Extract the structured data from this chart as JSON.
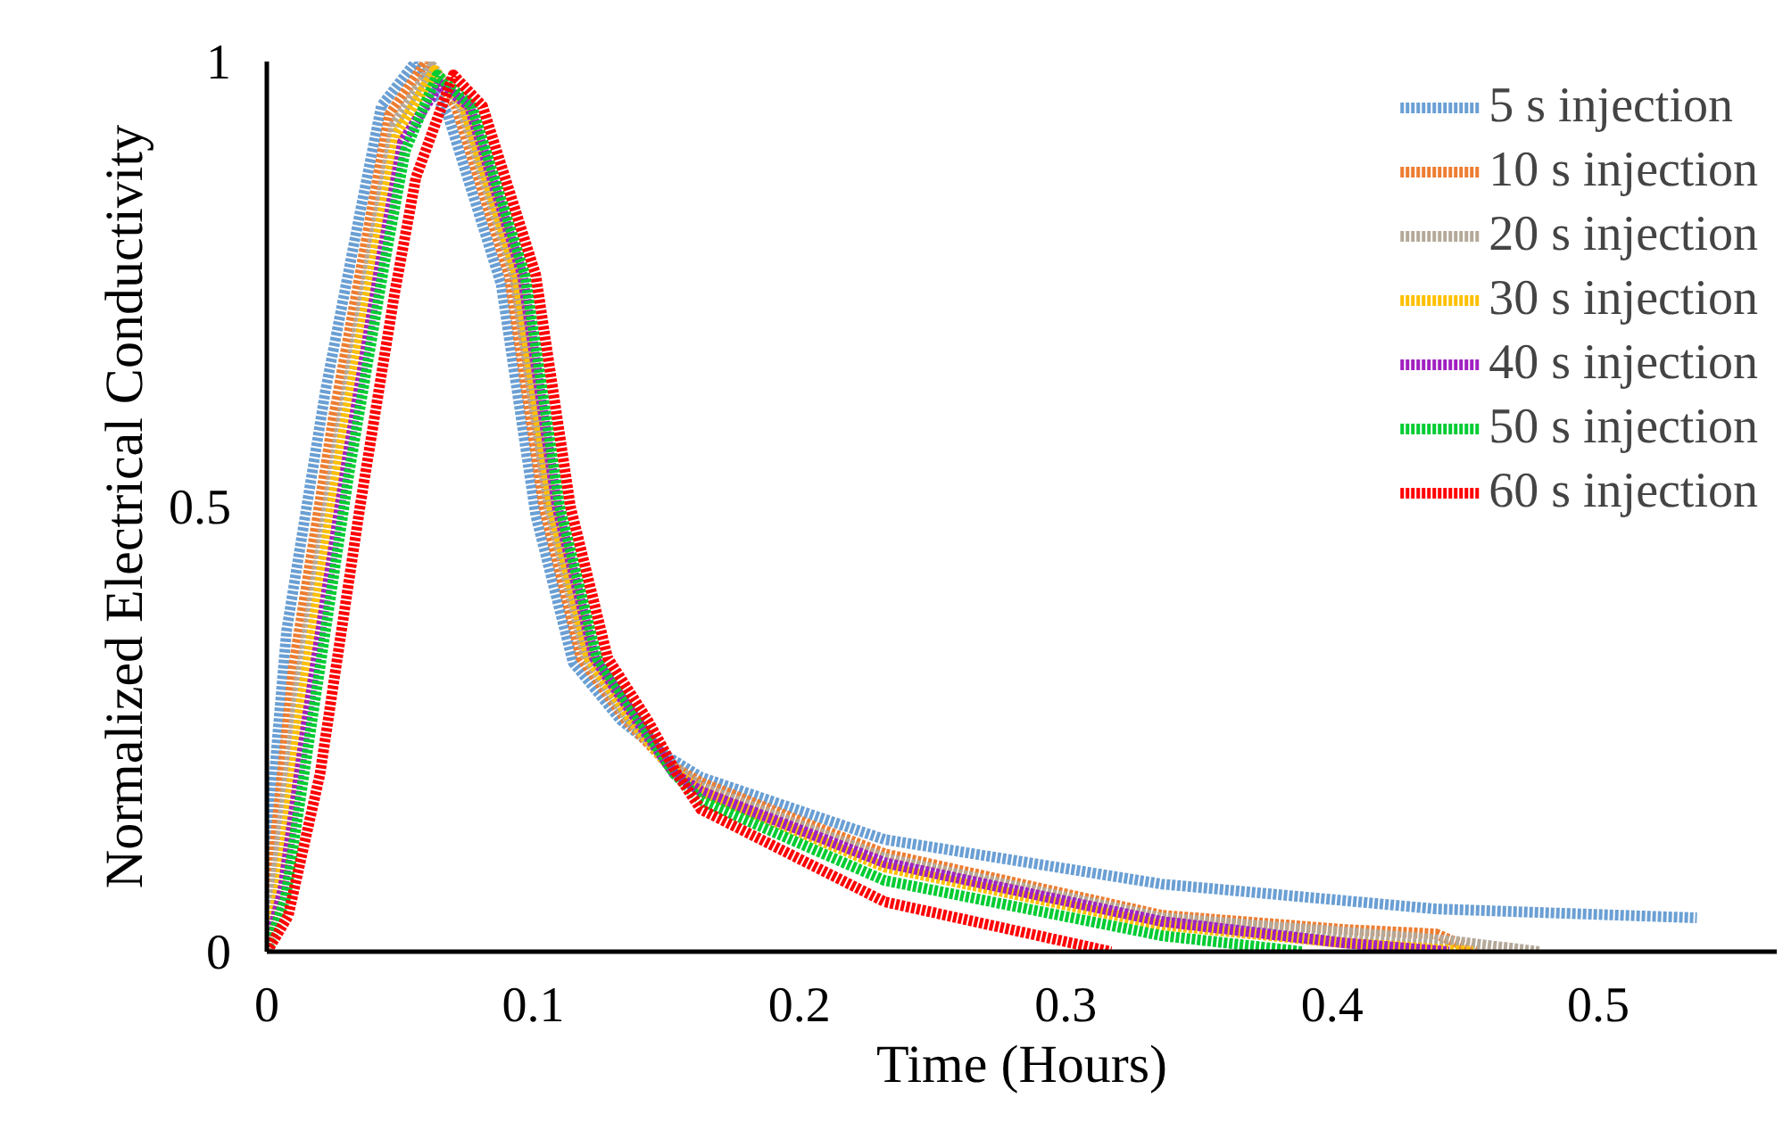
{
  "chart_data": {
    "type": "line",
    "xlabel": "Time (Hours)",
    "ylabel": "Normalized Electrical Conductivity",
    "xlim": [
      0,
      0.567
    ],
    "ylim": [
      0,
      1
    ],
    "xticks": [
      0,
      0.1,
      0.2,
      0.3,
      0.4,
      0.5
    ],
    "yticks": [
      0,
      0.5,
      1
    ],
    "grid": false,
    "legend": "top right",
    "line_style": "dotted",
    "marker": "none",
    "series": [
      {
        "name": "5 s injection",
        "color": "#6a9fd4",
        "x": [
          0,
          0.002,
          0.0074,
          0.022,
          0.035,
          0.043,
          0.056,
          0.068,
          0.088,
          0.101,
          0.115,
          0.133,
          0.15,
          0.163,
          0.232,
          0.336,
          0.439,
          0.537
        ],
        "values": [
          0,
          0.17,
          0.36,
          0.63,
          0.83,
          0.95,
          1,
          0.94,
          0.75,
          0.49,
          0.325,
          0.26,
          0.22,
          0.196,
          0.126,
          0.076,
          0.048,
          0.038
        ]
      },
      {
        "name": "10 s injection",
        "color": "#ed7d31",
        "x": [
          0,
          0.003,
          0.01,
          0.025,
          0.038,
          0.046,
          0.06,
          0.071,
          0.091,
          0.104,
          0.118,
          0.135,
          0.151,
          0.163,
          0.232,
          0.336,
          0.404,
          0.439,
          0.455
        ],
        "values": [
          0,
          0.12,
          0.32,
          0.6,
          0.81,
          0.94,
          1,
          0.95,
          0.76,
          0.5,
          0.33,
          0.26,
          0.21,
          0.19,
          0.11,
          0.041,
          0.025,
          0.02,
          0
        ]
      },
      {
        "name": "20 s injection",
        "color": "#b4a898",
        "x": [
          0,
          0.004,
          0.012,
          0.027,
          0.04,
          0.048,
          0.062,
          0.073,
          0.093,
          0.106,
          0.12,
          0.136,
          0.152,
          0.163,
          0.232,
          0.336,
          0.404,
          0.445,
          0.478
        ],
        "values": [
          0,
          0.1,
          0.3,
          0.58,
          0.8,
          0.93,
          0.995,
          0.95,
          0.76,
          0.5,
          0.33,
          0.26,
          0.21,
          0.185,
          0.105,
          0.038,
          0.022,
          0.012,
          0
        ]
      },
      {
        "name": "30 s injection",
        "color": "#ffc000",
        "x": [
          0,
          0.005,
          0.013,
          0.028,
          0.041,
          0.049,
          0.063,
          0.074,
          0.094,
          0.107,
          0.121,
          0.137,
          0.152,
          0.163,
          0.232,
          0.336,
          0.404,
          0.453
        ],
        "values": [
          0,
          0.08,
          0.28,
          0.57,
          0.79,
          0.92,
          0.99,
          0.95,
          0.76,
          0.5,
          0.33,
          0.26,
          0.205,
          0.18,
          0.095,
          0.03,
          0.01,
          0
        ]
      },
      {
        "name": "40 s injection",
        "color": "#a020c0",
        "x": [
          0,
          0.006,
          0.015,
          0.03,
          0.043,
          0.051,
          0.065,
          0.076,
          0.096,
          0.109,
          0.123,
          0.139,
          0.153,
          0.163,
          0.232,
          0.336,
          0.404,
          0.444
        ],
        "values": [
          0,
          0.07,
          0.26,
          0.55,
          0.78,
          0.91,
          0.975,
          0.95,
          0.76,
          0.5,
          0.33,
          0.26,
          0.2,
          0.18,
          0.1,
          0.034,
          0.01,
          0
        ]
      },
      {
        "name": "50 s injection",
        "color": "#00cc33",
        "x": [
          0,
          0.007,
          0.016,
          0.031,
          0.044,
          0.052,
          0.064,
          0.077,
          0.097,
          0.11,
          0.124,
          0.14,
          0.153,
          0.163,
          0.232,
          0.336,
          0.389
        ],
        "values": [
          0,
          0.06,
          0.24,
          0.54,
          0.77,
          0.9,
          0.985,
          0.95,
          0.76,
          0.5,
          0.33,
          0.26,
          0.2,
          0.17,
          0.08,
          0.018,
          0
        ]
      },
      {
        "name": "60 s injection",
        "color": "#ff0000",
        "x": [
          0,
          0.008,
          0.02,
          0.035,
          0.048,
          0.056,
          0.07,
          0.081,
          0.101,
          0.114,
          0.128,
          0.143,
          0.154,
          0.163,
          0.232,
          0.317
        ],
        "values": [
          0,
          0.04,
          0.2,
          0.5,
          0.74,
          0.87,
          0.985,
          0.95,
          0.76,
          0.5,
          0.33,
          0.26,
          0.2,
          0.16,
          0.056,
          0
        ]
      }
    ]
  }
}
